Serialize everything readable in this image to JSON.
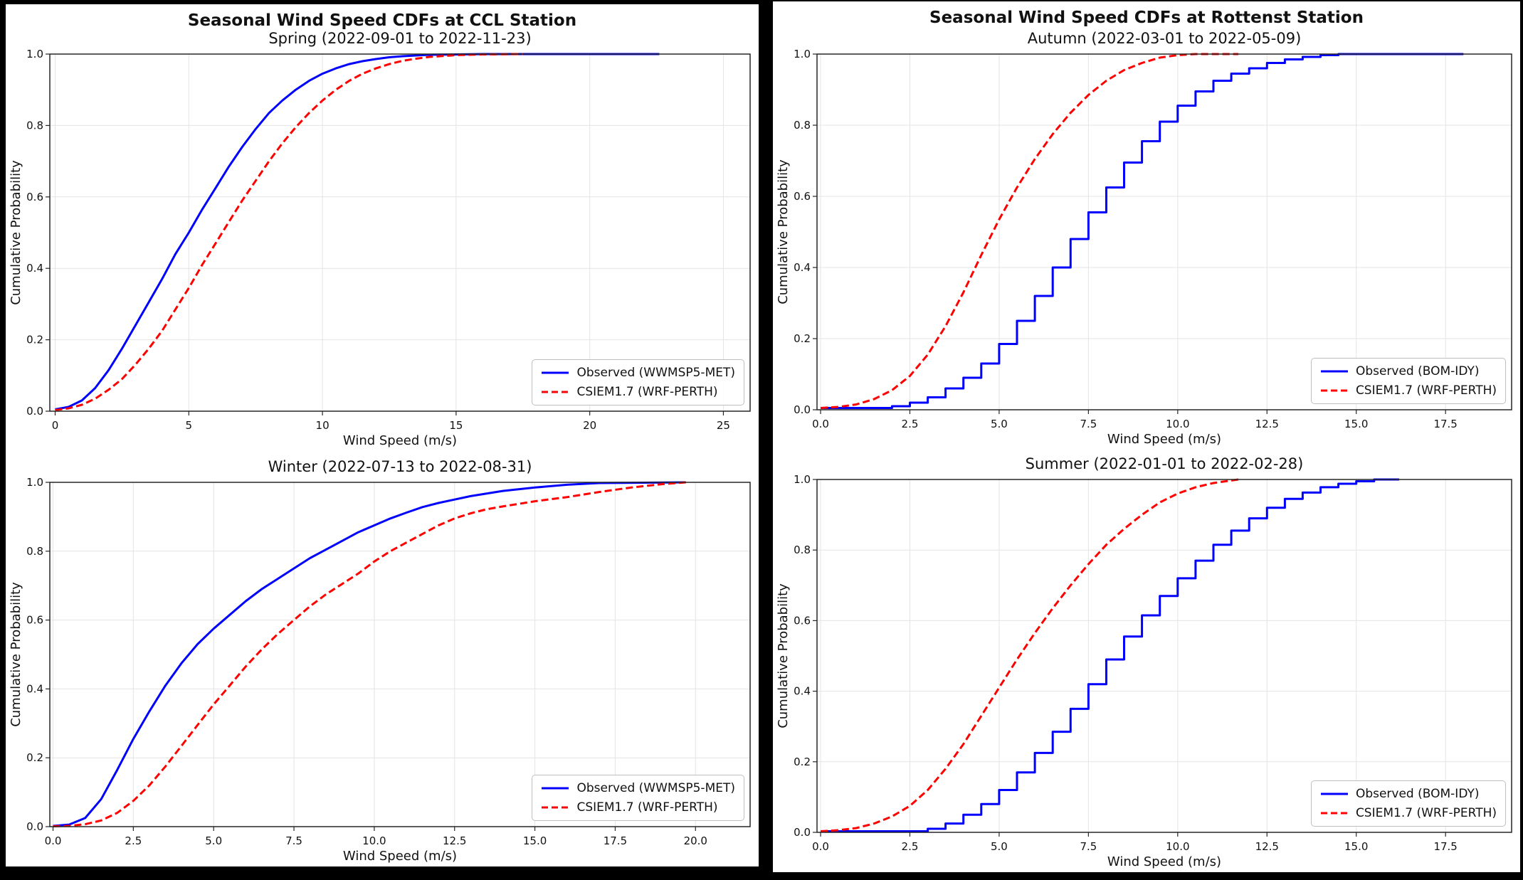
{
  "figures": [
    {
      "title": "Seasonal Wind Speed CDFs at CCL Station"
    },
    {
      "title": "Seasonal Wind Speed CDFs at Rottenst Station"
    }
  ],
  "chart_data": [
    {
      "type": "line",
      "title": "Spring (2022-09-01 to 2022-11-23)",
      "xlabel": "Wind Speed (m/s)",
      "ylabel": "Cumulative Probability",
      "xlim": [
        -0.2,
        26.0
      ],
      "ylim": [
        0,
        1
      ],
      "xticks": [
        0,
        5,
        10,
        15,
        20,
        25
      ],
      "xtick_labels": [
        "0",
        "5",
        "10",
        "15",
        "20",
        "25"
      ],
      "yticks": [
        0,
        0.2,
        0.4,
        0.6,
        0.8,
        1.0
      ],
      "ytick_labels": [
        "0.0",
        "0.2",
        "0.4",
        "0.6",
        "0.8",
        "1.0"
      ],
      "grid": true,
      "legend_position": "lower right",
      "series": [
        {
          "name": "Observed (WWMSP5-MET)",
          "color": "#0000ff",
          "dash": false,
          "step": false,
          "x": [
            0,
            0.5,
            1,
            1.5,
            2,
            2.5,
            3,
            3.5,
            4,
            4.5,
            5,
            5.5,
            6,
            6.5,
            7,
            7.5,
            8,
            8.5,
            9,
            9.5,
            10,
            10.5,
            11,
            11.5,
            12,
            12.5,
            13,
            14,
            15,
            16,
            18,
            22.6
          ],
          "y": [
            0.005,
            0.012,
            0.03,
            0.065,
            0.115,
            0.175,
            0.24,
            0.305,
            0.37,
            0.44,
            0.5,
            0.565,
            0.625,
            0.685,
            0.74,
            0.79,
            0.835,
            0.87,
            0.9,
            0.925,
            0.945,
            0.96,
            0.972,
            0.98,
            0.986,
            0.991,
            0.994,
            0.998,
            0.999,
            1,
            1,
            1
          ]
        },
        {
          "name": "CSIEM1.7 (WRF-PERTH)",
          "color": "#ff0000",
          "dash": true,
          "step": false,
          "x": [
            0,
            0.5,
            1,
            1.5,
            2,
            2.5,
            3,
            3.5,
            4,
            4.5,
            5,
            5.5,
            6,
            6.5,
            7,
            7.5,
            8,
            8.5,
            9,
            9.5,
            10,
            10.5,
            11,
            11.5,
            12,
            12.5,
            13,
            13.5,
            14,
            15,
            16,
            17.5
          ],
          "y": [
            0.003,
            0.008,
            0.018,
            0.035,
            0.06,
            0.09,
            0.13,
            0.175,
            0.225,
            0.285,
            0.345,
            0.41,
            0.47,
            0.53,
            0.59,
            0.645,
            0.7,
            0.75,
            0.795,
            0.835,
            0.87,
            0.9,
            0.925,
            0.945,
            0.96,
            0.972,
            0.981,
            0.987,
            0.992,
            0.997,
            0.999,
            1
          ]
        }
      ]
    },
    {
      "type": "line",
      "title": "Winter (2022-07-13 to 2022-08-31)",
      "xlabel": "Wind Speed (m/s)",
      "ylabel": "Cumulative Probability",
      "xlim": [
        -0.1,
        21.7
      ],
      "ylim": [
        0,
        1
      ],
      "xticks": [
        0,
        2.5,
        5,
        7.5,
        10,
        12.5,
        15,
        17.5,
        20
      ],
      "xtick_labels": [
        "0.0",
        "2.5",
        "5.0",
        "7.5",
        "10.0",
        "12.5",
        "15.0",
        "17.5",
        "20.0"
      ],
      "yticks": [
        0,
        0.2,
        0.4,
        0.6,
        0.8,
        1.0
      ],
      "ytick_labels": [
        "0.0",
        "0.2",
        "0.4",
        "0.6",
        "0.8",
        "1.0"
      ],
      "grid": true,
      "legend_position": "lower right",
      "series": [
        {
          "name": "Observed (WWMSP5-MET)",
          "color": "#0000ff",
          "dash": false,
          "step": false,
          "x": [
            0,
            0.5,
            1,
            1.5,
            2,
            2.5,
            3,
            3.5,
            4,
            4.5,
            5,
            5.5,
            6,
            6.5,
            7,
            7.5,
            8,
            8.5,
            9,
            9.5,
            10,
            10.5,
            11,
            11.5,
            12,
            12.5,
            13,
            14,
            15,
            16,
            17,
            19.7
          ],
          "y": [
            0.002,
            0.006,
            0.025,
            0.08,
            0.165,
            0.255,
            0.335,
            0.41,
            0.475,
            0.53,
            0.575,
            0.615,
            0.655,
            0.69,
            0.72,
            0.75,
            0.78,
            0.805,
            0.83,
            0.855,
            0.875,
            0.895,
            0.912,
            0.928,
            0.94,
            0.95,
            0.96,
            0.975,
            0.985,
            0.993,
            0.998,
            1
          ]
        },
        {
          "name": "CSIEM1.7 (WRF-PERTH)",
          "color": "#ff0000",
          "dash": true,
          "step": false,
          "x": [
            0,
            0.5,
            1,
            1.5,
            2,
            2.5,
            3,
            3.5,
            4,
            4.5,
            5,
            5.5,
            6,
            6.5,
            7,
            7.5,
            8,
            8.5,
            9,
            9.5,
            10,
            10.5,
            11,
            11.5,
            12,
            12.5,
            13,
            13.5,
            14,
            15,
            16,
            17,
            18,
            19,
            19.7
          ],
          "y": [
            0.001,
            0.002,
            0.007,
            0.018,
            0.04,
            0.075,
            0.12,
            0.175,
            0.235,
            0.295,
            0.355,
            0.41,
            0.465,
            0.515,
            0.56,
            0.6,
            0.64,
            0.675,
            0.705,
            0.735,
            0.77,
            0.8,
            0.825,
            0.85,
            0.875,
            0.895,
            0.91,
            0.922,
            0.93,
            0.945,
            0.957,
            0.972,
            0.985,
            0.995,
            1
          ]
        }
      ]
    },
    {
      "type": "line",
      "title": "Autumn (2022-03-01 to 2022-05-09)",
      "xlabel": "Wind Speed (m/s)",
      "ylabel": "Cumulative Probability",
      "xlim": [
        -0.1,
        19.35
      ],
      "ylim": [
        0,
        1
      ],
      "xticks": [
        0,
        2.5,
        5,
        7.5,
        10,
        12.5,
        15,
        17.5
      ],
      "xtick_labels": [
        "0.0",
        "2.5",
        "5.0",
        "7.5",
        "10.0",
        "12.5",
        "15.0",
        "17.5"
      ],
      "yticks": [
        0,
        0.2,
        0.4,
        0.6,
        0.8,
        1.0
      ],
      "ytick_labels": [
        "0.0",
        "0.2",
        "0.4",
        "0.6",
        "0.8",
        "1.0"
      ],
      "grid": true,
      "legend_position": "lower right",
      "series": [
        {
          "name": "Observed (BOM-IDY)",
          "color": "#0000ff",
          "dash": false,
          "step": true,
          "x": [
            0,
            1.5,
            2,
            2.5,
            3,
            3.5,
            4,
            4.5,
            5,
            5.5,
            6,
            6.5,
            7,
            7.5,
            8,
            8.5,
            9,
            9.5,
            10,
            10.5,
            11,
            11.5,
            12,
            12.5,
            13,
            13.5,
            14,
            14.5,
            18
          ],
          "y": [
            0.005,
            0.005,
            0.01,
            0.02,
            0.035,
            0.06,
            0.09,
            0.13,
            0.185,
            0.25,
            0.32,
            0.4,
            0.48,
            0.555,
            0.625,
            0.695,
            0.755,
            0.81,
            0.855,
            0.895,
            0.925,
            0.945,
            0.96,
            0.975,
            0.985,
            0.992,
            0.997,
            1,
            1
          ]
        },
        {
          "name": "CSIEM1.7 (WRF-PERTH)",
          "color": "#ff0000",
          "dash": true,
          "step": false,
          "x": [
            0,
            0.5,
            1,
            1.5,
            2,
            2.5,
            3,
            3.5,
            4,
            4.5,
            5,
            5.5,
            6,
            6.5,
            7,
            7.5,
            8,
            8.5,
            9,
            9.5,
            10,
            10.5,
            11.7
          ],
          "y": [
            0.005,
            0.008,
            0.015,
            0.03,
            0.055,
            0.095,
            0.155,
            0.235,
            0.33,
            0.435,
            0.535,
            0.625,
            0.705,
            0.775,
            0.835,
            0.885,
            0.925,
            0.955,
            0.975,
            0.99,
            0.997,
            1,
            1
          ]
        }
      ]
    },
    {
      "type": "line",
      "title": "Summer (2022-01-01 to 2022-02-28)",
      "xlabel": "Wind Speed (m/s)",
      "ylabel": "Cumulative Probability",
      "xlim": [
        -0.1,
        19.35
      ],
      "ylim": [
        0,
        1
      ],
      "xticks": [
        0,
        2.5,
        5,
        7.5,
        10,
        12.5,
        15,
        17.5
      ],
      "xtick_labels": [
        "0.0",
        "2.5",
        "5.0",
        "7.5",
        "10.0",
        "12.5",
        "15.0",
        "17.5"
      ],
      "yticks": [
        0,
        0.2,
        0.4,
        0.6,
        0.8,
        1.0
      ],
      "ytick_labels": [
        "0.0",
        "0.2",
        "0.4",
        "0.6",
        "0.8",
        "1.0"
      ],
      "grid": true,
      "legend_position": "lower right",
      "series": [
        {
          "name": "Observed (BOM-IDY)",
          "color": "#0000ff",
          "dash": false,
          "step": true,
          "x": [
            0,
            2.5,
            3,
            3.5,
            4,
            4.5,
            5,
            5.5,
            6,
            6.5,
            7,
            7.5,
            8,
            8.5,
            9,
            9.5,
            10,
            10.5,
            11,
            11.5,
            12,
            12.5,
            13,
            13.5,
            14,
            14.5,
            15,
            15.5,
            16.2
          ],
          "y": [
            0.003,
            0.003,
            0.01,
            0.025,
            0.05,
            0.08,
            0.12,
            0.17,
            0.225,
            0.285,
            0.35,
            0.42,
            0.49,
            0.555,
            0.615,
            0.67,
            0.72,
            0.77,
            0.815,
            0.855,
            0.89,
            0.92,
            0.945,
            0.963,
            0.978,
            0.988,
            0.995,
            1,
            1
          ]
        },
        {
          "name": "CSIEM1.7 (WRF-PERTH)",
          "color": "#ff0000",
          "dash": true,
          "step": false,
          "x": [
            0,
            0.5,
            1,
            1.5,
            2,
            2.5,
            3,
            3.5,
            4,
            4.5,
            5,
            5.5,
            6,
            6.5,
            7,
            7.5,
            8,
            8.5,
            9,
            9.5,
            10,
            10.5,
            11,
            11.7
          ],
          "y": [
            0.003,
            0.006,
            0.012,
            0.025,
            0.045,
            0.075,
            0.12,
            0.18,
            0.25,
            0.33,
            0.41,
            0.49,
            0.565,
            0.635,
            0.7,
            0.76,
            0.815,
            0.86,
            0.9,
            0.935,
            0.96,
            0.978,
            0.99,
            1
          ]
        }
      ]
    }
  ]
}
